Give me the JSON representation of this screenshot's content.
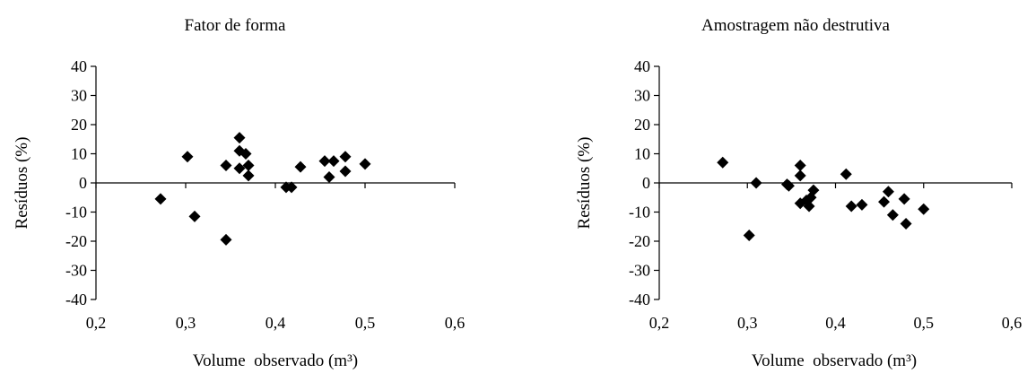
{
  "chart_data": [
    {
      "type": "scatter",
      "title": "Fator de forma",
      "xlabel": "Volume  observado (m³)",
      "ylabel": "Resíduos (%)",
      "xlim": [
        0.2,
        0.6
      ],
      "ylim": [
        -40,
        40
      ],
      "x_ticks": [
        "0,2",
        "0,3",
        "0,4",
        "0,5",
        "0,6"
      ],
      "y_ticks": [
        "40",
        "30",
        "20",
        "10",
        "0",
        "-10",
        "-20",
        "-30",
        "-40"
      ],
      "marker": "diamond",
      "marker_color": "#000000",
      "points": [
        [
          0.272,
          -5.5
        ],
        [
          0.302,
          9
        ],
        [
          0.31,
          -11.5
        ],
        [
          0.345,
          -19.5
        ],
        [
          0.345,
          6
        ],
        [
          0.36,
          15.5
        ],
        [
          0.36,
          11
        ],
        [
          0.36,
          5
        ],
        [
          0.367,
          10
        ],
        [
          0.37,
          6
        ],
        [
          0.37,
          2.5
        ],
        [
          0.412,
          -1.5
        ],
        [
          0.418,
          -1.5
        ],
        [
          0.428,
          5.5
        ],
        [
          0.455,
          7.5
        ],
        [
          0.465,
          7.5
        ],
        [
          0.46,
          2
        ],
        [
          0.478,
          9
        ],
        [
          0.478,
          4
        ],
        [
          0.5,
          6.5
        ]
      ]
    },
    {
      "type": "scatter",
      "title": "Amostragem não destrutiva",
      "xlabel": "Volume  observado (m³)",
      "ylabel": "Resíduos (%)",
      "xlim": [
        0.2,
        0.6
      ],
      "ylim": [
        -40,
        40
      ],
      "x_ticks": [
        "0,2",
        "0,3",
        "0,4",
        "0,5",
        "0,6"
      ],
      "y_ticks": [
        "40",
        "30",
        "20",
        "10",
        "0",
        "-10",
        "-20",
        "-30",
        "-40"
      ],
      "marker": "diamond",
      "marker_color": "#000000",
      "points": [
        [
          0.272,
          7
        ],
        [
          0.302,
          -18
        ],
        [
          0.31,
          0
        ],
        [
          0.345,
          -0.5
        ],
        [
          0.347,
          -1
        ],
        [
          0.36,
          6
        ],
        [
          0.36,
          2.5
        ],
        [
          0.36,
          -7
        ],
        [
          0.367,
          -6
        ],
        [
          0.37,
          -8
        ],
        [
          0.372,
          -5
        ],
        [
          0.375,
          -2.5
        ],
        [
          0.412,
          3
        ],
        [
          0.418,
          -8
        ],
        [
          0.43,
          -7.5
        ],
        [
          0.455,
          -6.5
        ],
        [
          0.46,
          -3
        ],
        [
          0.465,
          -11
        ],
        [
          0.478,
          -5.5
        ],
        [
          0.48,
          -14
        ],
        [
          0.5,
          -9
        ]
      ]
    }
  ]
}
